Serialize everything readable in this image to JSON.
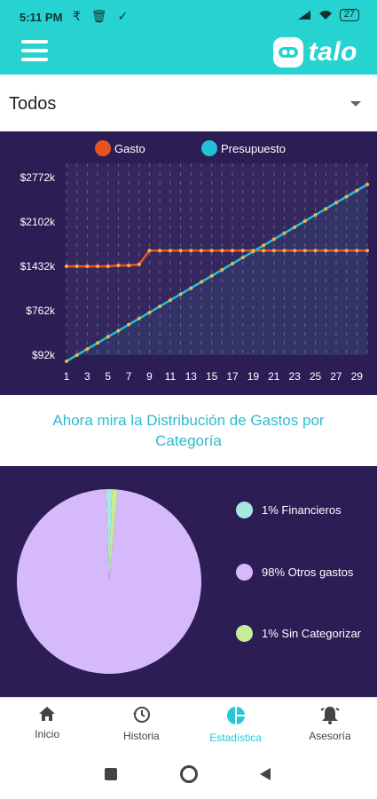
{
  "status_bar": {
    "time": "5:11 PM",
    "battery": "27"
  },
  "app_bar": {
    "logo_text": "talo"
  },
  "filter": {
    "selected": "Todos"
  },
  "chart_data": {
    "type": "line",
    "x": [
      1,
      2,
      3,
      4,
      5,
      6,
      7,
      8,
      9,
      10,
      11,
      12,
      13,
      14,
      15,
      16,
      17,
      18,
      19,
      20,
      21,
      22,
      23,
      24,
      25,
      26,
      27,
      28,
      29,
      30
    ],
    "x_ticks": [
      "1",
      "3",
      "5",
      "7",
      "9",
      "11",
      "13",
      "15",
      "17",
      "19",
      "21",
      "23",
      "25",
      "27",
      "29"
    ],
    "y_ticks": [
      "$2772k",
      "$2102k",
      "$1432k",
      "$762k",
      "$92k"
    ],
    "y_tick_values": [
      2772,
      2102,
      1432,
      762,
      92
    ],
    "ylim": [
      92,
      2772
    ],
    "legend_position": "top",
    "grid": true,
    "series": [
      {
        "name": "Gasto",
        "color": "#e8541e",
        "values": [
          1432,
          1432,
          1432,
          1432,
          1432,
          1445,
          1445,
          1460,
          1670,
          1670,
          1670,
          1670,
          1670,
          1670,
          1670,
          1670,
          1670,
          1670,
          1670,
          1670,
          1670,
          1670,
          1670,
          1670,
          1670,
          1670,
          1670,
          1670,
          1670,
          1670
        ]
      },
      {
        "name": "Presupuesto",
        "color": "#23c1d6",
        "values": [
          0,
          92,
          184,
          276,
          368,
          460,
          552,
          644,
          736,
          828,
          920,
          1012,
          1104,
          1196,
          1288,
          1380,
          1472,
          1564,
          1656,
          1748,
          1840,
          1932,
          2024,
          2116,
          2208,
          2300,
          2392,
          2484,
          2576,
          2668
        ]
      }
    ]
  },
  "headline": "Ahora mira la Distribución de Gastos por Categoría",
  "pie": {
    "slices": [
      {
        "label": "1% Financieros",
        "value": 1,
        "color": "#a6eadf"
      },
      {
        "label": "98% Otros gastos",
        "value": 98,
        "color": "#d5b9fb"
      },
      {
        "label": "1% Sin Categorizar",
        "value": 1,
        "color": "#c8ec95"
      }
    ]
  },
  "bottom_nav": [
    {
      "label": "Inicio",
      "icon": "home-icon"
    },
    {
      "label": "Historia",
      "icon": "history-icon"
    },
    {
      "label": "Estadística",
      "icon": "stats-icon",
      "active": true
    },
    {
      "label": "Asesoría",
      "icon": "bell-icon"
    }
  ]
}
